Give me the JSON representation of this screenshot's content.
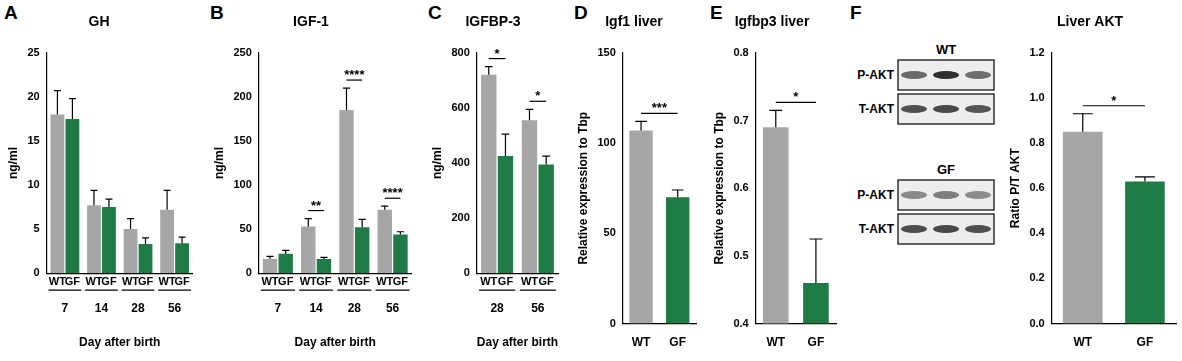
{
  "chart_data": [
    {
      "panel": "A",
      "type": "bar",
      "title": "GH",
      "categories": [
        "7",
        "14",
        "28",
        "56"
      ],
      "series": [
        {
          "name": "WT",
          "color": "#a6a6a6",
          "values": [
            18,
            7.7,
            5,
            7.2
          ],
          "errors": [
            2.7,
            1.7,
            1.2,
            2.2
          ]
        },
        {
          "name": "GF",
          "color": "#1e7b45",
          "values": [
            17.5,
            7.5,
            3.3,
            3.4
          ],
          "errors": [
            2.3,
            0.9,
            0.7,
            0.7
          ]
        }
      ],
      "x_label": "Day after birth",
      "y_label": "ng/ml",
      "ylim": [
        0,
        25
      ],
      "yticks": [
        0,
        5,
        10,
        15,
        20,
        25
      ],
      "grid": false,
      "annotations": []
    },
    {
      "panel": "B",
      "type": "bar",
      "title": "IGF-1",
      "categories": [
        "7",
        "14",
        "28",
        "56"
      ],
      "series": [
        {
          "name": "WT",
          "color": "#a6a6a6",
          "values": [
            16,
            53,
            185,
            72
          ],
          "errors": [
            3,
            9,
            25,
            4
          ]
        },
        {
          "name": "GF",
          "color": "#1e7b45",
          "values": [
            22,
            16,
            52,
            44
          ],
          "errors": [
            4,
            2,
            9,
            3
          ]
        }
      ],
      "x_label": "Day after birth",
      "y_label": "ng/ml",
      "ylim": [
        0,
        250
      ],
      "yticks": [
        0,
        50,
        100,
        150,
        200,
        250
      ],
      "grid": false,
      "annotations": [
        {
          "category": "14",
          "text": "**"
        },
        {
          "category": "28",
          "text": "****"
        },
        {
          "category": "56",
          "text": "****"
        }
      ]
    },
    {
      "panel": "C",
      "type": "bar",
      "title": "IGFBP-3",
      "categories": [
        "28",
        "56"
      ],
      "series": [
        {
          "name": "WT",
          "color": "#a6a6a6",
          "values": [
            720,
            555
          ],
          "errors": [
            30,
            40
          ]
        },
        {
          "name": "GF",
          "color": "#1e7b45",
          "values": [
            425,
            395
          ],
          "errors": [
            80,
            30
          ]
        }
      ],
      "x_label": "Day after birth",
      "y_label": "ng/ml",
      "ylim": [
        0,
        800
      ],
      "yticks": [
        0,
        200,
        400,
        600,
        800
      ],
      "grid": false,
      "annotations": [
        {
          "category": "28",
          "text": "*"
        },
        {
          "category": "56",
          "text": "*"
        }
      ]
    },
    {
      "panel": "D",
      "type": "bar",
      "title": "Igf1 liver",
      "categories": [
        "WT",
        "GF"
      ],
      "values": [
        107,
        70
      ],
      "errors": [
        5,
        4
      ],
      "colors": [
        "#a6a6a6",
        "#1e7b45"
      ],
      "y_label": "Relative expression to Tbp",
      "ylim": [
        0,
        150
      ],
      "yticks": [
        0,
        50,
        100,
        150
      ],
      "grid": false,
      "annotations": [
        {
          "text": "***"
        }
      ]
    },
    {
      "panel": "E",
      "type": "bar",
      "title": "Igfbp3 liver",
      "categories": [
        "WT",
        "GF"
      ],
      "values": [
        0.69,
        0.46
      ],
      "errors": [
        0.025,
        0.065
      ],
      "colors": [
        "#a6a6a6",
        "#1e7b45"
      ],
      "y_label": "Relative expression to Tbp",
      "ylim": [
        0.4,
        0.8
      ],
      "yticks": [
        0.4,
        0.5,
        0.6,
        0.7,
        0.8
      ],
      "grid": false,
      "annotations": [
        {
          "text": "*"
        }
      ]
    },
    {
      "type": "bar",
      "title": "Liver AKT",
      "categories": [
        "WT",
        "GF"
      ],
      "values": [
        0.85,
        0.63
      ],
      "errors": [
        0.08,
        0.02
      ],
      "colors": [
        "#a6a6a6",
        "#1e7b45"
      ],
      "y_label": "Ratio P/T AKT",
      "ylim": [
        0,
        1.2
      ],
      "yticks": [
        {
          "value": 0,
          "label": "0.0"
        },
        0.2,
        0.4,
        0.6,
        0.8,
        {
          "value": 1,
          "label": "1.0"
        },
        1.2
      ],
      "grid": false,
      "annotations": [
        {
          "text": "*"
        }
      ]
    }
  ],
  "blot": {
    "panel": "F",
    "groups": [
      {
        "label": "WT",
        "rows": [
          "P-AKT",
          "T-AKT"
        ]
      },
      {
        "label": "GF",
        "rows": [
          "P-AKT",
          "T-AKT"
        ]
      }
    ]
  }
}
